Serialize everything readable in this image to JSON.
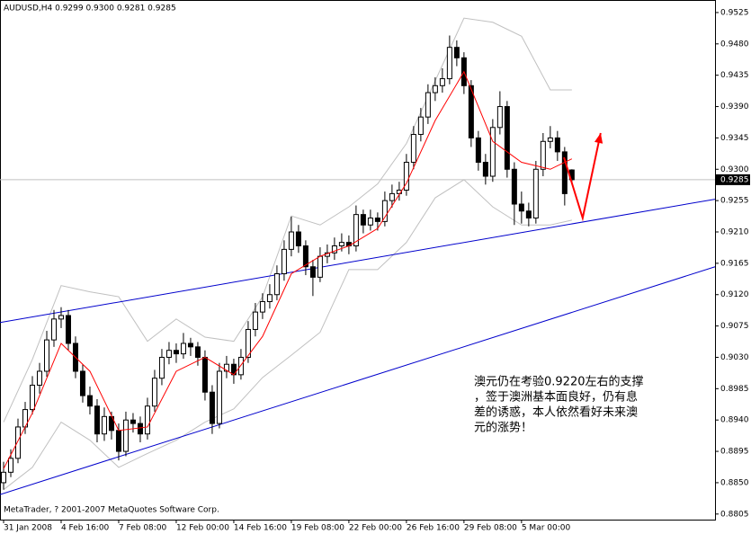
{
  "chart_data": {
    "type": "candlestick",
    "title": "AUDUSD,H4  0.9299 0.9300 0.9281 0.9285",
    "copyright": "MetaTrader, ? 2001-2007 MetaQuotes Software Corp.",
    "annotation": [
      "澳元仍在考验0.9220左右的支撑",
      "，签于澳洲基本面良好，仍有息",
      "差的诱惑，本人依然看好未来澳",
      "元的涨势！"
    ],
    "xlim": [
      -0.5,
      98.9
    ],
    "ylim": [
      0.8797,
      0.9543
    ],
    "yticks": [
      0.8805,
      {
        "value": 0.885,
        "label": "0.8850"
      },
      0.8895,
      {
        "value": 0.894,
        "label": "0.8940"
      },
      0.8985,
      {
        "value": 0.903,
        "label": "0.9030"
      },
      0.9075,
      {
        "value": 0.912,
        "label": "0.9120"
      },
      0.9165,
      {
        "value": 0.921,
        "label": "0.9210"
      },
      0.9255,
      {
        "value": 0.93,
        "label": "0.9300"
      },
      0.9345,
      {
        "value": 0.939,
        "label": "0.9390"
      },
      0.9435,
      {
        "value": 0.948,
        "label": "0.9480"
      },
      0.9525
    ],
    "xticks": [
      {
        "value": 0,
        "label": "31 Jan 2008"
      },
      {
        "value": 8,
        "label": "4 Feb 16:00"
      },
      {
        "value": 16,
        "label": "7 Feb 08:00"
      },
      {
        "value": 24,
        "label": "12 Feb 00:00"
      },
      {
        "value": 32,
        "label": "14 Feb 16:00"
      },
      {
        "value": 40,
        "label": "19 Feb 08:00"
      },
      {
        "value": 48,
        "label": "22 Feb 00:00"
      },
      {
        "value": 56,
        "label": "26 Feb 16:00"
      },
      {
        "value": 64,
        "label": "29 Feb 08:00"
      },
      {
        "value": 72,
        "label": "5 Mar 00:00"
      }
    ],
    "current_price": 0.9285,
    "candles": [
      [
        0.885,
        0.888,
        0.884,
        0.8865
      ],
      [
        0.8865,
        0.8898,
        0.8858,
        0.8885
      ],
      [
        0.8885,
        0.8942,
        0.8878,
        0.893
      ],
      [
        0.893,
        0.8966,
        0.892,
        0.8955
      ],
      [
        0.8955,
        0.9003,
        0.8948,
        0.899
      ],
      [
        0.899,
        0.9022,
        0.8978,
        0.901
      ],
      [
        0.901,
        0.9068,
        0.9002,
        0.9055
      ],
      [
        0.9055,
        0.9098,
        0.9045,
        0.9085
      ],
      [
        0.9085,
        0.9102,
        0.9072,
        0.909
      ],
      [
        0.909,
        0.9098,
        0.904,
        0.905
      ],
      [
        0.905,
        0.906,
        0.9,
        0.901
      ],
      [
        0.901,
        0.902,
        0.8965,
        0.8975
      ],
      [
        0.8975,
        0.8988,
        0.8948,
        0.896
      ],
      [
        0.896,
        0.897,
        0.8908,
        0.892
      ],
      [
        0.892,
        0.8958,
        0.891,
        0.8945
      ],
      [
        0.8945,
        0.8952,
        0.8912,
        0.8925
      ],
      [
        0.8925,
        0.8935,
        0.8882,
        0.8895
      ],
      [
        0.8895,
        0.8952,
        0.8888,
        0.894
      ],
      [
        0.894,
        0.895,
        0.8922,
        0.8935
      ],
      [
        0.8935,
        0.8945,
        0.8908,
        0.892
      ],
      [
        0.892,
        0.8972,
        0.8912,
        0.896
      ],
      [
        0.896,
        0.9012,
        0.8952,
        0.9
      ],
      [
        0.9,
        0.9042,
        0.899,
        0.903
      ],
      [
        0.903,
        0.9052,
        0.902,
        0.904
      ],
      [
        0.904,
        0.905,
        0.9022,
        0.9035
      ],
      [
        0.9035,
        0.9065,
        0.9028,
        0.905
      ],
      [
        0.905,
        0.9058,
        0.9032,
        0.9045
      ],
      [
        0.9045,
        0.9052,
        0.9018,
        0.903
      ],
      [
        0.903,
        0.904,
        0.8968,
        0.898
      ],
      [
        0.898,
        0.899,
        0.892,
        0.8935
      ],
      [
        0.8935,
        0.9022,
        0.8928,
        0.901
      ],
      [
        0.901,
        0.9032,
        0.9,
        0.902
      ],
      [
        0.902,
        0.9028,
        0.8992,
        0.9005
      ],
      [
        0.9005,
        0.9042,
        0.8998,
        0.903
      ],
      [
        0.903,
        0.9082,
        0.9022,
        0.907
      ],
      [
        0.907,
        0.9108,
        0.906,
        0.9095
      ],
      [
        0.9095,
        0.9122,
        0.9085,
        0.911
      ],
      [
        0.911,
        0.9135,
        0.91,
        0.912
      ],
      [
        0.912,
        0.9162,
        0.9112,
        0.915
      ],
      [
        0.915,
        0.9198,
        0.914,
        0.9185
      ],
      [
        0.9185,
        0.9232,
        0.9175,
        0.921
      ],
      [
        0.921,
        0.922,
        0.918,
        0.919
      ],
      [
        0.919,
        0.9198,
        0.9148,
        0.916
      ],
      [
        0.916,
        0.917,
        0.9118,
        0.9145
      ],
      [
        0.9145,
        0.9188,
        0.9138,
        0.9175
      ],
      [
        0.9175,
        0.9192,
        0.9165,
        0.918
      ],
      [
        0.918,
        0.9202,
        0.917,
        0.919
      ],
      [
        0.919,
        0.9208,
        0.9182,
        0.9195
      ],
      [
        0.9195,
        0.9205,
        0.9178,
        0.919
      ],
      [
        0.919,
        0.9248,
        0.9182,
        0.9235
      ],
      [
        0.9235,
        0.9242,
        0.9208,
        0.922
      ],
      [
        0.922,
        0.9242,
        0.9212,
        0.923
      ],
      [
        0.923,
        0.9238,
        0.9212,
        0.9225
      ],
      [
        0.9225,
        0.9268,
        0.9218,
        0.9255
      ],
      [
        0.9255,
        0.9278,
        0.9245,
        0.9265
      ],
      [
        0.9265,
        0.9282,
        0.9255,
        0.927
      ],
      [
        0.927,
        0.9322,
        0.9262,
        0.931
      ],
      [
        0.931,
        0.9362,
        0.93,
        0.935
      ],
      [
        0.935,
        0.9388,
        0.934,
        0.9375
      ],
      [
        0.9375,
        0.9422,
        0.9365,
        0.941
      ],
      [
        0.941,
        0.9432,
        0.9398,
        0.942
      ],
      [
        0.942,
        0.9445,
        0.941,
        0.943
      ],
      [
        0.943,
        0.9492,
        0.9422,
        0.9475
      ],
      [
        0.9475,
        0.9485,
        0.9448,
        0.946
      ],
      [
        0.946,
        0.9468,
        0.9408,
        0.942
      ],
      [
        0.942,
        0.9428,
        0.9332,
        0.9345
      ],
      [
        0.9345,
        0.9355,
        0.9298,
        0.931
      ],
      [
        0.931,
        0.9322,
        0.9278,
        0.929
      ],
      [
        0.929,
        0.9372,
        0.9282,
        0.936
      ],
      [
        0.936,
        0.9412,
        0.935,
        0.939
      ],
      [
        0.939,
        0.9398,
        0.9288,
        0.93
      ],
      [
        0.93,
        0.931,
        0.922,
        0.925
      ],
      [
        0.925,
        0.9268,
        0.9222,
        0.924
      ],
      [
        0.924,
        0.9252,
        0.9218,
        0.923
      ],
      [
        0.923,
        0.9312,
        0.9222,
        0.93
      ],
      [
        0.93,
        0.9352,
        0.929,
        0.934
      ],
      [
        0.934,
        0.9362,
        0.933,
        0.9345
      ],
      [
        0.9345,
        0.9355,
        0.9312,
        0.9325
      ],
      [
        0.9325,
        0.9332,
        0.9248,
        0.9265
      ],
      [
        0.9299,
        0.93,
        0.9281,
        0.9285
      ]
    ],
    "band_x": [
      0,
      4,
      8,
      12,
      16,
      20,
      24,
      28,
      32,
      36,
      40,
      44,
      48,
      52,
      56,
      60,
      64,
      68,
      72,
      76,
      79
    ],
    "overlays": [
      {
        "color": "#c0c0c0",
        "values": [
          0.8937,
          0.9027,
          0.9133,
          0.9124,
          0.9117,
          0.9053,
          0.9085,
          0.9059,
          0.9053,
          0.9117,
          0.9233,
          0.922,
          0.9246,
          0.9279,
          0.9337,
          0.9427,
          0.9517,
          0.9511,
          0.9491,
          0.9414,
          0.9414
        ]
      },
      {
        "color": "#c0c0c0",
        "values": [
          0.884,
          0.8872,
          0.8937,
          0.8911,
          0.8872,
          0.8892,
          0.8911,
          0.8937,
          0.8956,
          0.9001,
          0.9033,
          0.9066,
          0.9156,
          0.9156,
          0.9195,
          0.9259,
          0.9285,
          0.9246,
          0.922,
          0.922,
          0.9227
        ]
      },
      {
        "color": "#ff0000",
        "values": [
          0.887,
          0.895,
          0.905,
          0.901,
          0.8925,
          0.893,
          0.901,
          0.903,
          0.9005,
          0.906,
          0.915,
          0.9175,
          0.919,
          0.9215,
          0.928,
          0.937,
          0.944,
          0.934,
          0.931,
          0.93,
          0.9315
        ]
      }
    ],
    "trendlines": [
      {
        "color": "#0000cc",
        "x": [
          -0.5,
          98.9
        ],
        "values": [
          0.908,
          0.9257
        ]
      },
      {
        "color": "#0000cc",
        "x": [
          -0.5,
          98.9
        ],
        "values": [
          0.8833,
          0.916
        ]
      }
    ],
    "arrow": {
      "color": "#ff0000",
      "x": [
        77.9,
        80.5,
        83
      ],
      "values": [
        0.9317,
        0.923,
        0.9352
      ]
    }
  }
}
